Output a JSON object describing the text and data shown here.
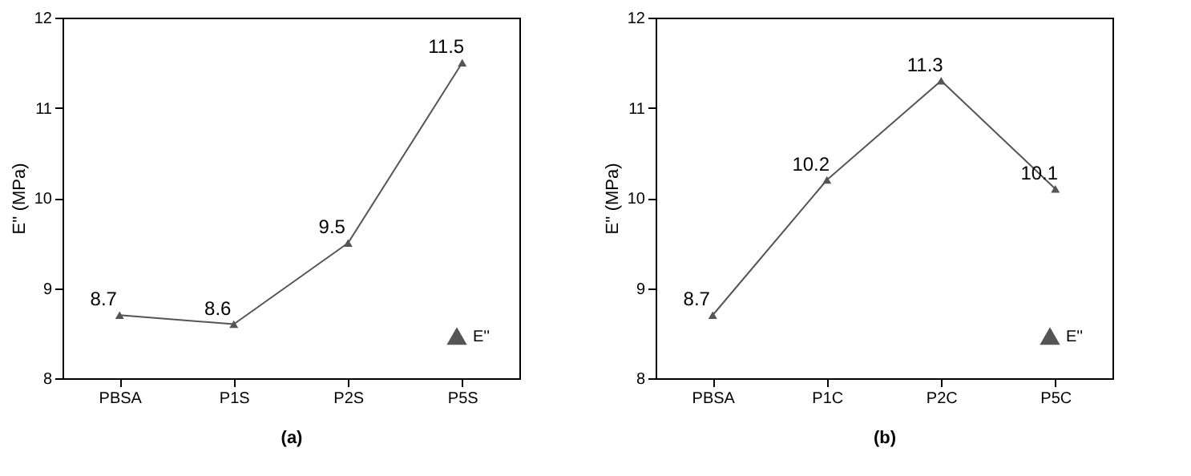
{
  "chart_data": [
    {
      "type": "line",
      "categories": [
        "PBSA",
        "P1S",
        "P2S",
        "P5S"
      ],
      "series": [
        {
          "name": "E''",
          "color": "#555555",
          "values": [
            8.7,
            8.6,
            9.5,
            11.5
          ]
        }
      ],
      "ylabel": "E'' (MPa)",
      "xlabel": "(a)",
      "ylim": [
        8,
        12
      ],
      "yticks": [
        8,
        9,
        10,
        11,
        12
      ],
      "marker": "triangle",
      "legend": "bottom right",
      "data_labels": true,
      "grid": false
    },
    {
      "type": "line",
      "categories": [
        "PBSA",
        "P1C",
        "P2C",
        "P5C"
      ],
      "series": [
        {
          "name": "E''",
          "color": "#555555",
          "values": [
            8.7,
            10.2,
            11.3,
            10.1
          ]
        }
      ],
      "ylabel": "E'' (MPa)",
      "xlabel": "(b)",
      "ylim": [
        8,
        12
      ],
      "yticks": [
        8,
        9,
        10,
        11,
        12
      ],
      "marker": "triangle",
      "legend": "bottom right",
      "data_labels": true,
      "grid": false
    }
  ]
}
